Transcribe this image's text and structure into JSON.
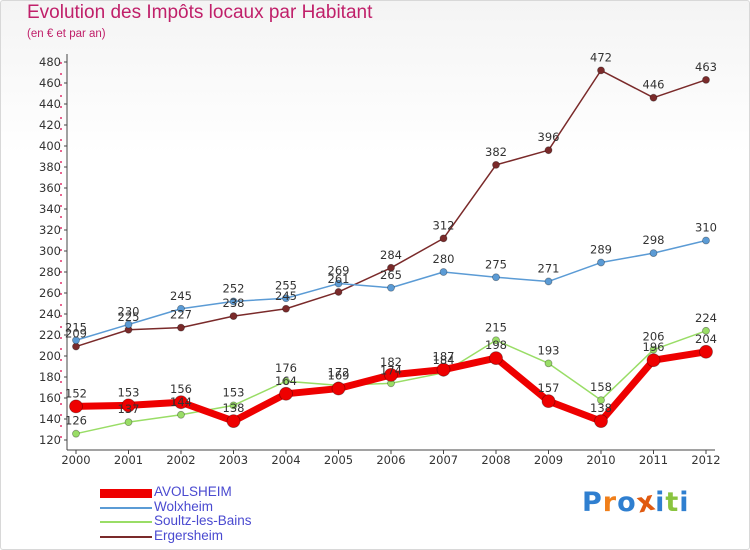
{
  "chart_data": {
    "type": "line",
    "title": "Evolution des Impôts locaux par Habitant",
    "subtitle": "(en € et par an)",
    "xlabel": "",
    "ylabel": "",
    "categories": [
      "2000",
      "2001",
      "2002",
      "2003",
      "2004",
      "2005",
      "2006",
      "2007",
      "2008",
      "2009",
      "2010",
      "2011",
      "2012"
    ],
    "ylim": [
      120,
      480
    ],
    "yticks": [
      120,
      140,
      160,
      180,
      200,
      220,
      240,
      260,
      280,
      300,
      320,
      340,
      360,
      380,
      400,
      420,
      440,
      460,
      480
    ],
    "grid": false,
    "legend_position": "bottom-left",
    "series": [
      {
        "name": "AVOLSHEIM",
        "color": "#ee0000",
        "values": [
          152,
          153,
          156,
          138,
          164,
          169,
          182,
          187,
          198,
          157,
          138,
          196,
          204
        ]
      },
      {
        "name": "Wolxheim",
        "color": "#5b9bd5",
        "values": [
          215,
          230,
          245,
          252,
          255,
          269,
          265,
          280,
          275,
          271,
          289,
          298,
          310
        ]
      },
      {
        "name": "Soultz-les-Bains",
        "color": "#99dd66",
        "values": [
          126,
          137,
          144,
          153,
          176,
          172,
          174,
          184,
          215,
          193,
          158,
          206,
          224
        ]
      },
      {
        "name": "Ergersheim",
        "color": "#7a2a2a",
        "values": [
          209,
          225,
          227,
          238,
          245,
          261,
          284,
          312,
          382,
          396,
          472,
          446,
          463
        ]
      }
    ]
  },
  "logo": {
    "letters": [
      "P",
      "r",
      "o",
      "x",
      "i",
      "t",
      "i"
    ],
    "colors": [
      "#2f7fd0",
      "#f07f1a",
      "#2f7fd0",
      "#e05a10",
      "#2f7fd0",
      "#8ac43f",
      "#2f7fd0"
    ]
  }
}
